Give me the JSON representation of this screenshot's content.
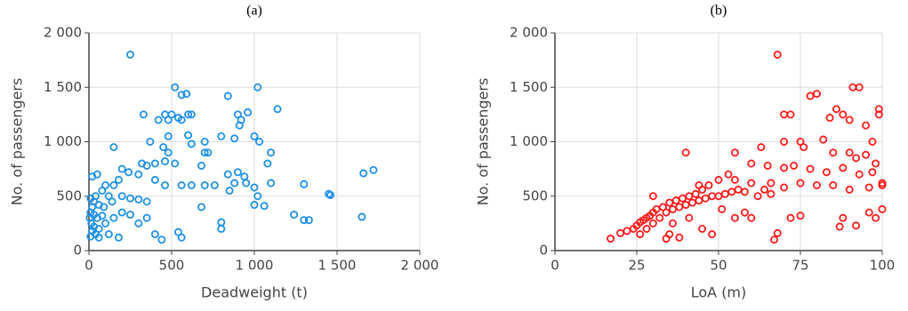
{
  "chart_data": [
    {
      "type": "scatter",
      "title": "(a)",
      "xlabel": "Deadweight (t)",
      "ylabel": "No. of passengers",
      "color": "#1e90e6",
      "grid": true,
      "xlim": [
        0,
        2000
      ],
      "ylim": [
        0,
        2000
      ],
      "xticks": [
        0,
        500,
        {
          "value": 1000,
          "label": "1 000"
        },
        {
          "value": 1500,
          "label": "1 500"
        },
        {
          "value": 2000,
          "label": "2 000"
        }
      ],
      "yticks": [
        0,
        500,
        {
          "value": 1000,
          "label": "1 000"
        },
        {
          "value": 1500,
          "label": "1 500"
        },
        {
          "value": 2000,
          "label": "2 000"
        }
      ],
      "x": [
        250,
        520,
        1020,
        1140,
        330,
        460,
        500,
        540,
        600,
        620,
        420,
        480,
        560,
        840,
        900,
        920,
        960,
        910,
        560,
        590,
        370,
        480,
        600,
        700,
        800,
        880,
        1000,
        1030,
        1080,
        1100,
        450,
        480,
        620,
        700,
        720,
        320,
        350,
        400,
        460,
        520,
        680,
        200,
        240,
        300,
        1660,
        1720,
        840,
        900,
        940,
        880,
        950,
        1000,
        1300,
        560,
        620,
        700,
        760,
        460,
        400,
        180,
        150,
        100,
        50,
        20,
        80,
        120,
        40,
        10,
        30,
        60,
        90,
        140,
        200,
        250,
        300,
        350,
        20,
        10,
        30,
        50,
        80,
        5,
        15,
        30,
        60,
        20,
        40,
        10,
        60,
        100,
        150,
        200,
        250,
        300,
        350,
        400,
        440,
        540,
        560,
        680,
        800,
        800,
        1000,
        1020,
        1240,
        1300,
        1330,
        1450,
        1460,
        1650,
        1060,
        850,
        1100,
        150,
        120,
        180
      ],
      "values": [
        1800,
        1500,
        1500,
        1300,
        1250,
        1250,
        1250,
        1220,
        1250,
        1250,
        1200,
        1200,
        1200,
        1420,
        1250,
        1200,
        1270,
        1150,
        1430,
        1440,
        1000,
        1050,
        1060,
        1000,
        1050,
        1030,
        1050,
        1000,
        800,
        900,
        950,
        900,
        980,
        900,
        900,
        800,
        780,
        800,
        820,
        800,
        780,
        750,
        720,
        700,
        710,
        740,
        700,
        720,
        680,
        620,
        620,
        580,
        610,
        600,
        600,
        600,
        600,
        600,
        650,
        650,
        600,
        600,
        700,
        680,
        550,
        500,
        500,
        480,
        450,
        420,
        400,
        450,
        500,
        480,
        470,
        450,
        400,
        350,
        330,
        300,
        320,
        300,
        250,
        220,
        200,
        180,
        150,
        130,
        120,
        250,
        300,
        350,
        330,
        250,
        300,
        150,
        100,
        170,
        120,
        400,
        200,
        260,
        420,
        500,
        330,
        280,
        280,
        520,
        510,
        310,
        410,
        550,
        620,
        950,
        150,
        120
      ]
    },
    {
      "type": "scatter",
      "title": "(b)",
      "xlabel": "LoA (m)",
      "ylabel": "No. of passengers",
      "color": "#ff1a1a",
      "grid": true,
      "xlim": [
        0,
        100
      ],
      "ylim": [
        0,
        2000
      ],
      "xticks": [
        0,
        25,
        50,
        75,
        100
      ],
      "yticks": [
        0,
        500,
        {
          "value": 1000,
          "label": "1 000"
        },
        {
          "value": 1500,
          "label": "1 500"
        },
        {
          "value": 2000,
          "label": "2 000"
        }
      ],
      "x": [
        68,
        70,
        72,
        78,
        80,
        88,
        90,
        91,
        93,
        99,
        99,
        86,
        84,
        95,
        97,
        40,
        55,
        63,
        70,
        75,
        76,
        82,
        85,
        90,
        92,
        95,
        98,
        60,
        65,
        70,
        73,
        78,
        83,
        88,
        93,
        97,
        100,
        100,
        96,
        90,
        85,
        80,
        75,
        70,
        66,
        60,
        55,
        50,
        47,
        45,
        43,
        41,
        39,
        37,
        35,
        33,
        31,
        30,
        29,
        28,
        27,
        26,
        25,
        24,
        22,
        20,
        17,
        30,
        32,
        34,
        36,
        38,
        40,
        42,
        44,
        46,
        48,
        50,
        52,
        54,
        56,
        58,
        62,
        64,
        66,
        35,
        38,
        34,
        45,
        48,
        55,
        58,
        60,
        72,
        75,
        88,
        96,
        98,
        100,
        87,
        92,
        30,
        28,
        26,
        36,
        41,
        51,
        44,
        53,
        67,
        68
      ],
      "values": [
        1800,
        1250,
        1250,
        1420,
        1440,
        1250,
        1200,
        1500,
        1500,
        1300,
        1250,
        1300,
        1220,
        1150,
        1000,
        900,
        900,
        950,
        1000,
        1000,
        950,
        1020,
        900,
        900,
        850,
        880,
        800,
        800,
        780,
        760,
        780,
        750,
        720,
        760,
        700,
        720,
        620,
        600,
        580,
        560,
        600,
        600,
        620,
        580,
        620,
        620,
        650,
        650,
        600,
        560,
        520,
        500,
        480,
        460,
        440,
        400,
        380,
        350,
        320,
        300,
        280,
        260,
        230,
        200,
        180,
        160,
        110,
        250,
        300,
        350,
        380,
        400,
        420,
        440,
        460,
        480,
        500,
        500,
        520,
        540,
        560,
        540,
        500,
        560,
        520,
        150,
        120,
        110,
        200,
        150,
        300,
        350,
        300,
        300,
        320,
        300,
        350,
        300,
        380,
        220,
        230,
        500,
        200,
        150,
        250,
        300,
        380,
        600,
        700,
        100,
        160
      ]
    }
  ]
}
